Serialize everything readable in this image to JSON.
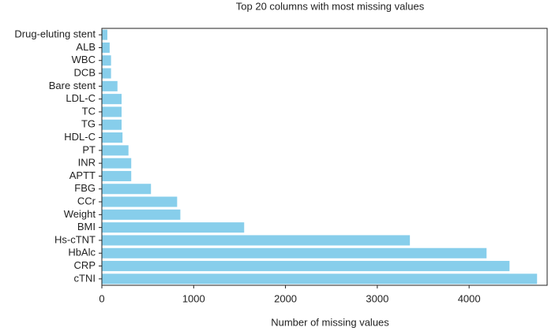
{
  "chart_data": {
    "type": "barh",
    "title": "Top 20 columns with most missing values",
    "x_label": "Number of missing values",
    "categories": [
      "Drug-eluting stent",
      "ALB",
      "WBC",
      "DCB",
      "Bare stent",
      "LDL-C",
      "TC",
      "TG",
      "HDL-C",
      "PT",
      "INR",
      "APTT",
      "FBG",
      "CCr",
      "Weight",
      "BMI",
      "Hs-cTNT",
      "HbAlc",
      "CRP",
      "cTNI"
    ],
    "values": [
      60,
      85,
      100,
      100,
      170,
      215,
      215,
      215,
      225,
      290,
      320,
      320,
      535,
      820,
      855,
      1550,
      3355,
      4190,
      4440,
      4740
    ],
    "color": "#87ceeb",
    "xlim": [
      0,
      4850
    ],
    "xticks": [
      0,
      1000,
      2000,
      3000,
      4000
    ]
  }
}
